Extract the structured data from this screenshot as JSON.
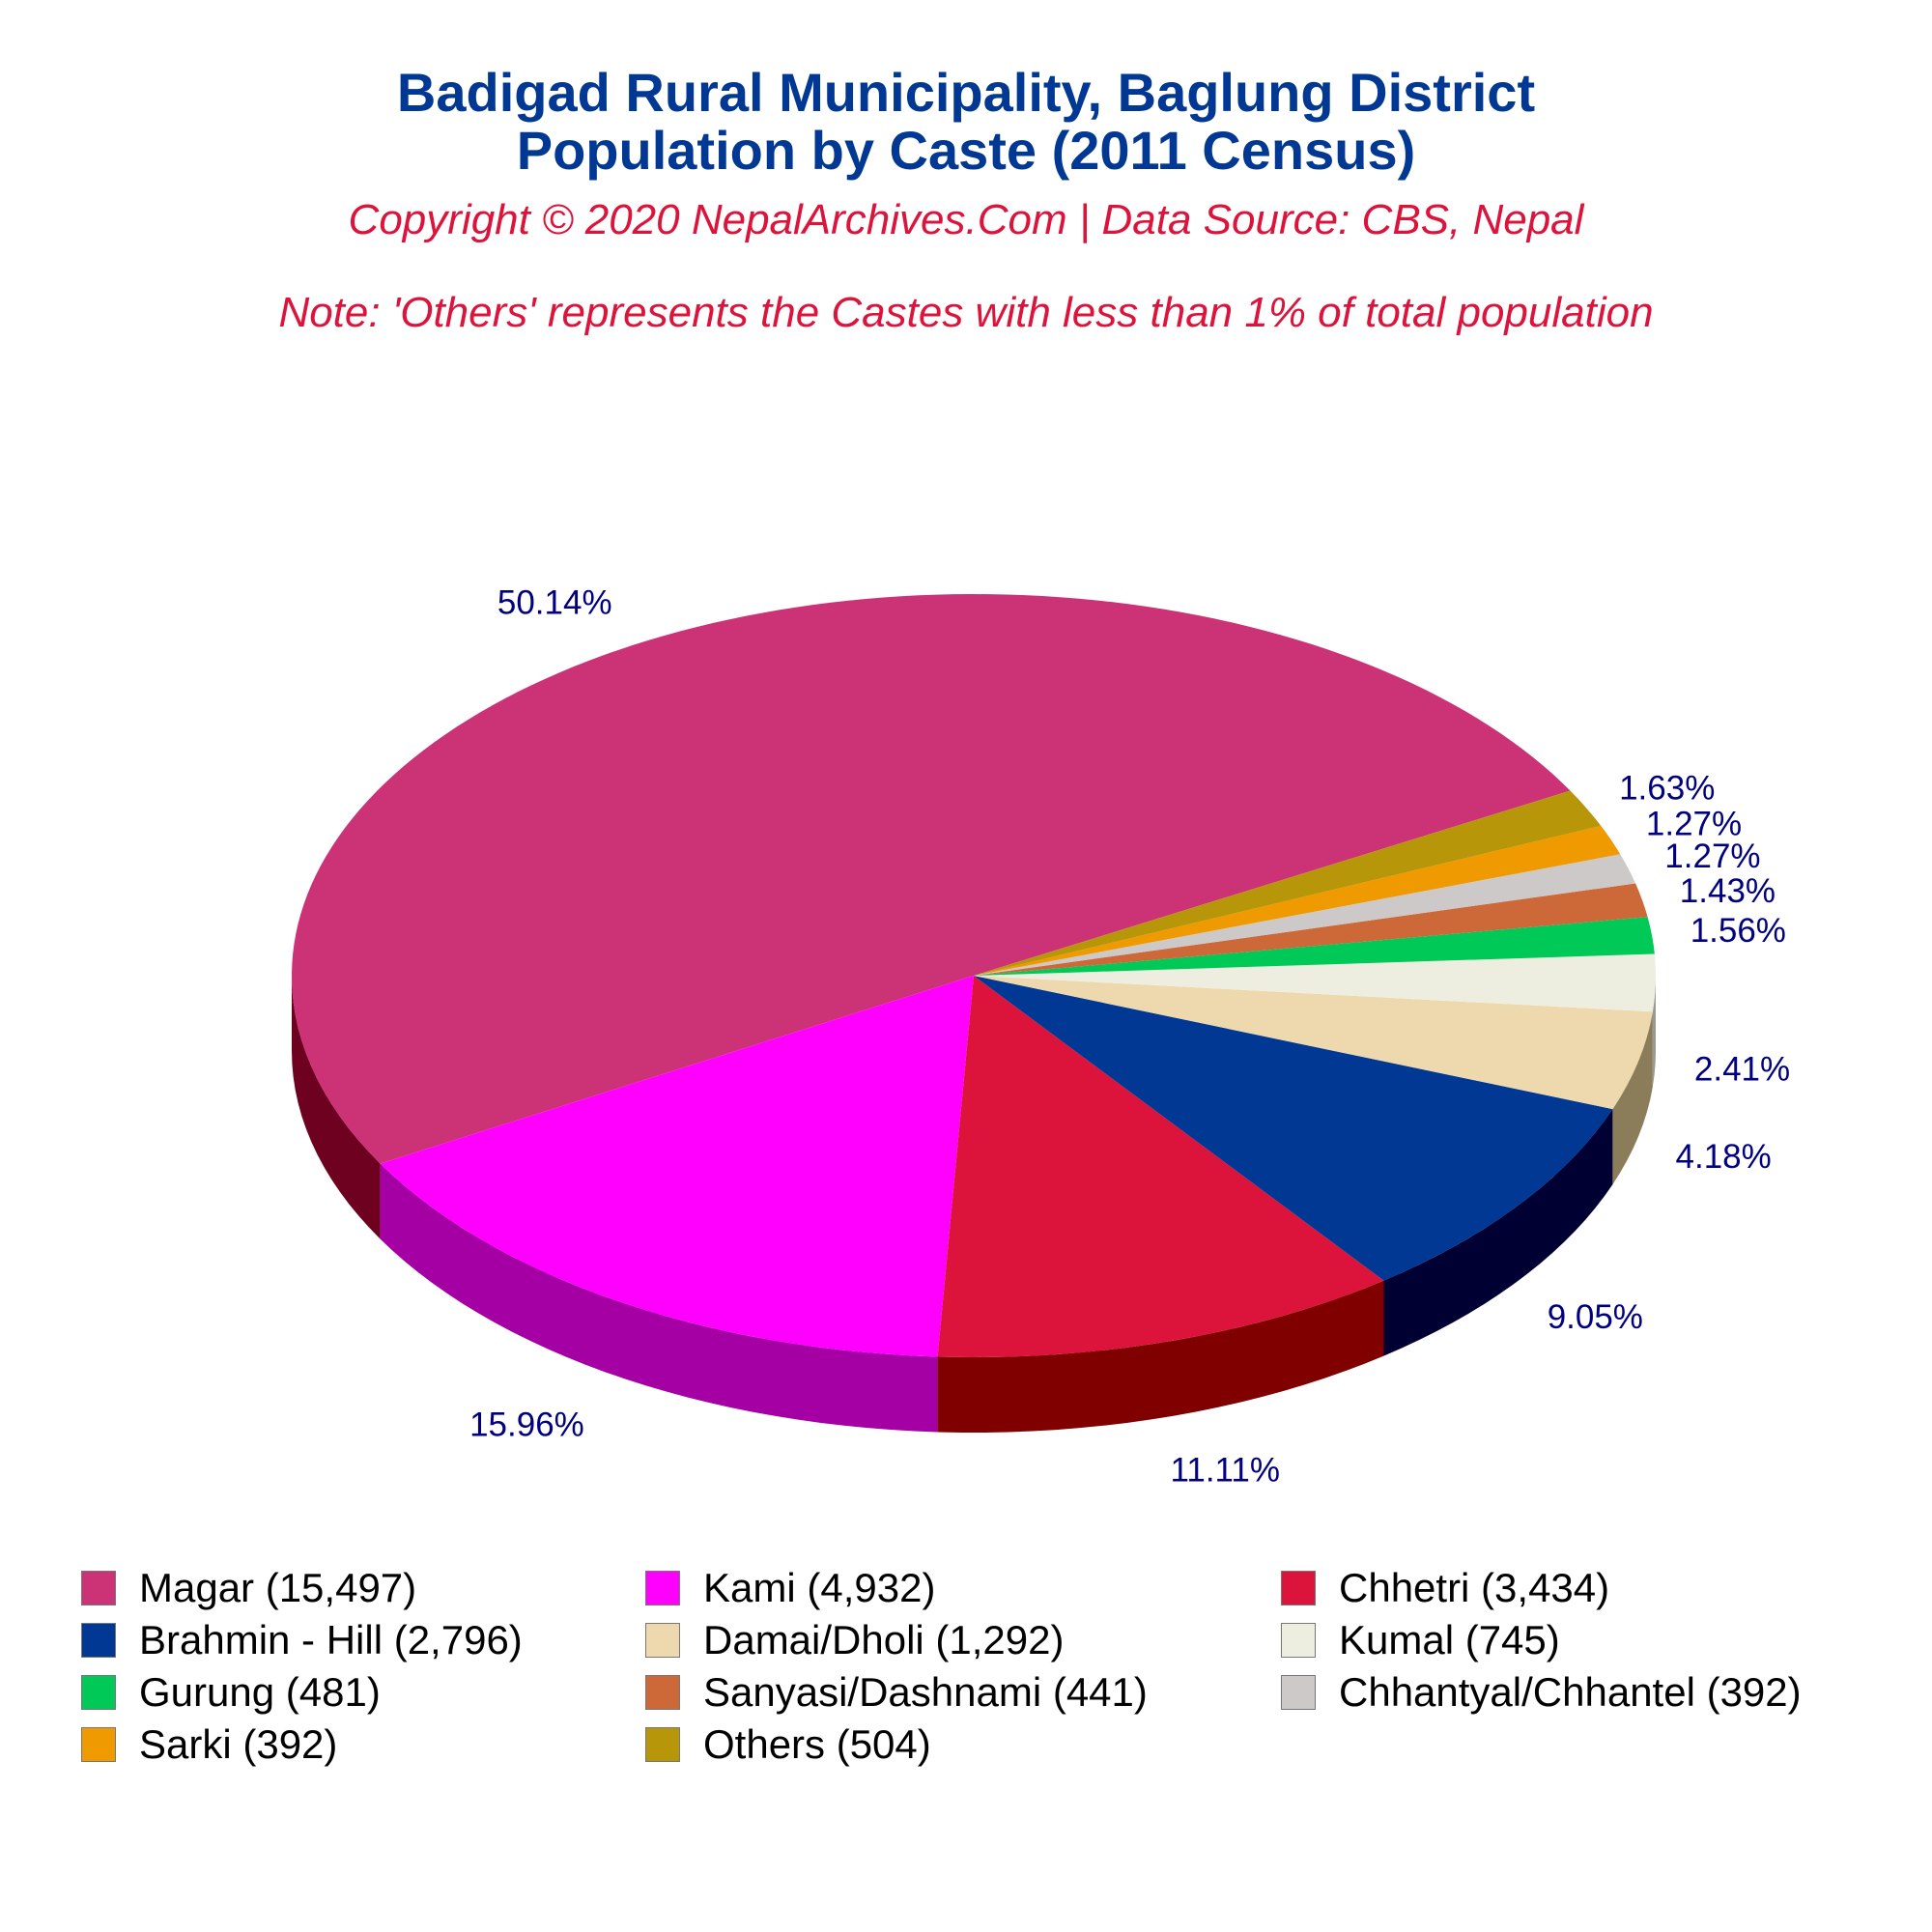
{
  "header": {
    "title_line1": "Badigad Rural Municipality, Baglung District",
    "title_line2": "Population by Caste (2011 Census)",
    "subtitle": "Copyright © 2020 NepalArchives.Com | Data Source: CBS, Nepal",
    "note": "Note: 'Others' represents the Castes with less than 1% of total population"
  },
  "chart_data": {
    "type": "pie",
    "style": "3d",
    "legend_placement": "bottom",
    "categories": [
      "Magar",
      "Kami",
      "Chhetri",
      "Brahmin - Hill",
      "Damai/Dholi",
      "Kumal",
      "Gurung",
      "Sanyasi/Dashnami",
      "Chhantyal/Chhantel",
      "Sarki",
      "Others"
    ],
    "values": [
      15497,
      4932,
      3434,
      2796,
      1292,
      745,
      481,
      441,
      392,
      392,
      504
    ],
    "percent_labels": [
      "50.14%",
      "15.96%",
      "11.11%",
      "9.05%",
      "4.18%",
      "2.41%",
      "1.56%",
      "1.43%",
      "1.27%",
      "1.27%",
      "1.63%"
    ],
    "legend_labels": [
      "Magar (15,497)",
      "Kami (4,932)",
      "Chhetri (3,434)",
      "Brahmin - Hill (2,796)",
      "Damai/Dholi (1,292)",
      "Kumal (745)",
      "Gurung (481)",
      "Sanyasi/Dashnami (441)",
      "Chhantyal/Chhantel (392)",
      "Sarki (392)",
      "Others (504)"
    ],
    "colors": [
      "#cc3377",
      "#ff00ff",
      "#dc143c",
      "#003893",
      "#eed9ae",
      "#eeeee0",
      "#00c957",
      "#cd6839",
      "#cdc9c9",
      "#ee9a00",
      "#b8960a"
    ],
    "side_colors": [
      "#6e0020",
      "#a400a4",
      "#800000",
      "#000033",
      "#8b7d5a",
      "#9a9a90",
      "#007a30",
      "#7a3a1a",
      "#7a7777",
      "#8a5a00",
      "#6e5a05"
    ]
  }
}
